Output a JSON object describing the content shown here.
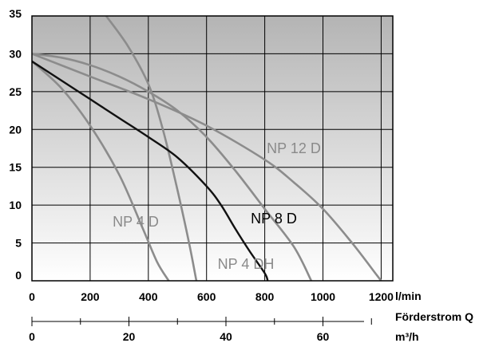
{
  "chart_data": {
    "type": "line",
    "x_unit": "l/min",
    "x_label": "Förderstrom Q",
    "x2_unit": "m³/h",
    "xlim": [
      0,
      1240
    ],
    "ylim": [
      0,
      35
    ],
    "x_ticks": [
      "0",
      "200",
      "400",
      "600",
      "800",
      "1000",
      "1200"
    ],
    "x2_ticks": [
      "0",
      "20",
      "40",
      "60"
    ],
    "y_ticks": [
      "0",
      "5",
      "10",
      "15",
      "20",
      "25",
      "30",
      "35"
    ],
    "grid": true,
    "series": [
      {
        "name": "NP 4 D",
        "color": "#8c8c8c",
        "points": [
          [
            0,
            29
          ],
          [
            100,
            25.5
          ],
          [
            200,
            20.5
          ],
          [
            300,
            14
          ],
          [
            380,
            7
          ],
          [
            430,
            2.5
          ],
          [
            470,
            0
          ]
        ]
      },
      {
        "name": "NP 4 DH",
        "color": "#8c8c8c",
        "points": [
          [
            255,
            35
          ],
          [
            330,
            31
          ],
          [
            400,
            26
          ],
          [
            450,
            20
          ],
          [
            500,
            12
          ],
          [
            540,
            5
          ],
          [
            565,
            0
          ]
        ]
      },
      {
        "name": "NP 8 D",
        "color": "#111111",
        "points": [
          [
            0,
            29
          ],
          [
            100,
            26.5
          ],
          [
            200,
            24
          ],
          [
            300,
            21.5
          ],
          [
            400,
            19
          ],
          [
            500,
            16.3
          ],
          [
            600,
            12.5
          ],
          [
            650,
            10
          ],
          [
            700,
            6.8
          ],
          [
            750,
            3.8
          ],
          [
            800,
            1
          ],
          [
            810,
            0
          ]
        ]
      },
      {
        "name": "NP 12 D",
        "color": "#8c8c8c",
        "points": [
          [
            0,
            30
          ],
          [
            200,
            27
          ],
          [
            400,
            24
          ],
          [
            600,
            20.5
          ],
          [
            800,
            16
          ],
          [
            900,
            13
          ],
          [
            1000,
            9.5
          ],
          [
            1100,
            5
          ],
          [
            1180,
            1
          ],
          [
            1200,
            0
          ]
        ]
      }
    ],
    "secondary_curve": {
      "color": "#8c8c8c",
      "points": [
        [
          0,
          30
        ],
        [
          100,
          29.5
        ],
        [
          200,
          28.5
        ],
        [
          300,
          27
        ],
        [
          400,
          25
        ],
        [
          500,
          22.5
        ],
        [
          600,
          19
        ],
        [
          700,
          14.5
        ],
        [
          800,
          9.5
        ],
        [
          900,
          4.5
        ],
        [
          960,
          0
        ]
      ]
    }
  }
}
